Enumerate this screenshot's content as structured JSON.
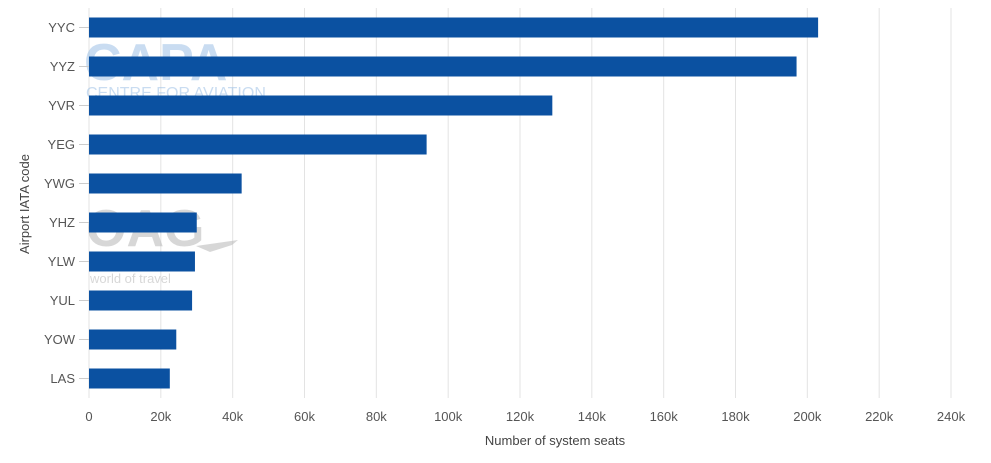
{
  "chart_data": {
    "type": "bar",
    "orientation": "horizontal",
    "categories": [
      "YYC",
      "YYZ",
      "YVR",
      "YEG",
      "YWG",
      "YHZ",
      "YLW",
      "YUL",
      "YOW",
      "LAS"
    ],
    "values": [
      203000,
      197000,
      129000,
      94000,
      42500,
      30000,
      29500,
      28700,
      24300,
      22500
    ],
    "xlabel": "Number of system seats",
    "ylabel": "Airport IATA code",
    "xlim": [
      0,
      240000
    ],
    "xticks": [
      0,
      20000,
      40000,
      60000,
      80000,
      100000,
      120000,
      140000,
      160000,
      180000,
      200000,
      220000,
      240000
    ],
    "xtick_labels": [
      "0",
      "20k",
      "40k",
      "60k",
      "80k",
      "100k",
      "120k",
      "140k",
      "160k",
      "180k",
      "200k",
      "220k",
      "240k"
    ],
    "grid": "vertical",
    "legend": "none",
    "bar_color": "#0b51a1"
  },
  "watermarks": {
    "capa": {
      "main": "CAPA",
      "sub": "CENTRE FOR AVIATION",
      "color": "#9dc1e6"
    },
    "oag": {
      "main": "OAG",
      "sub": "world of travel",
      "color": "#b8b8b8"
    }
  }
}
